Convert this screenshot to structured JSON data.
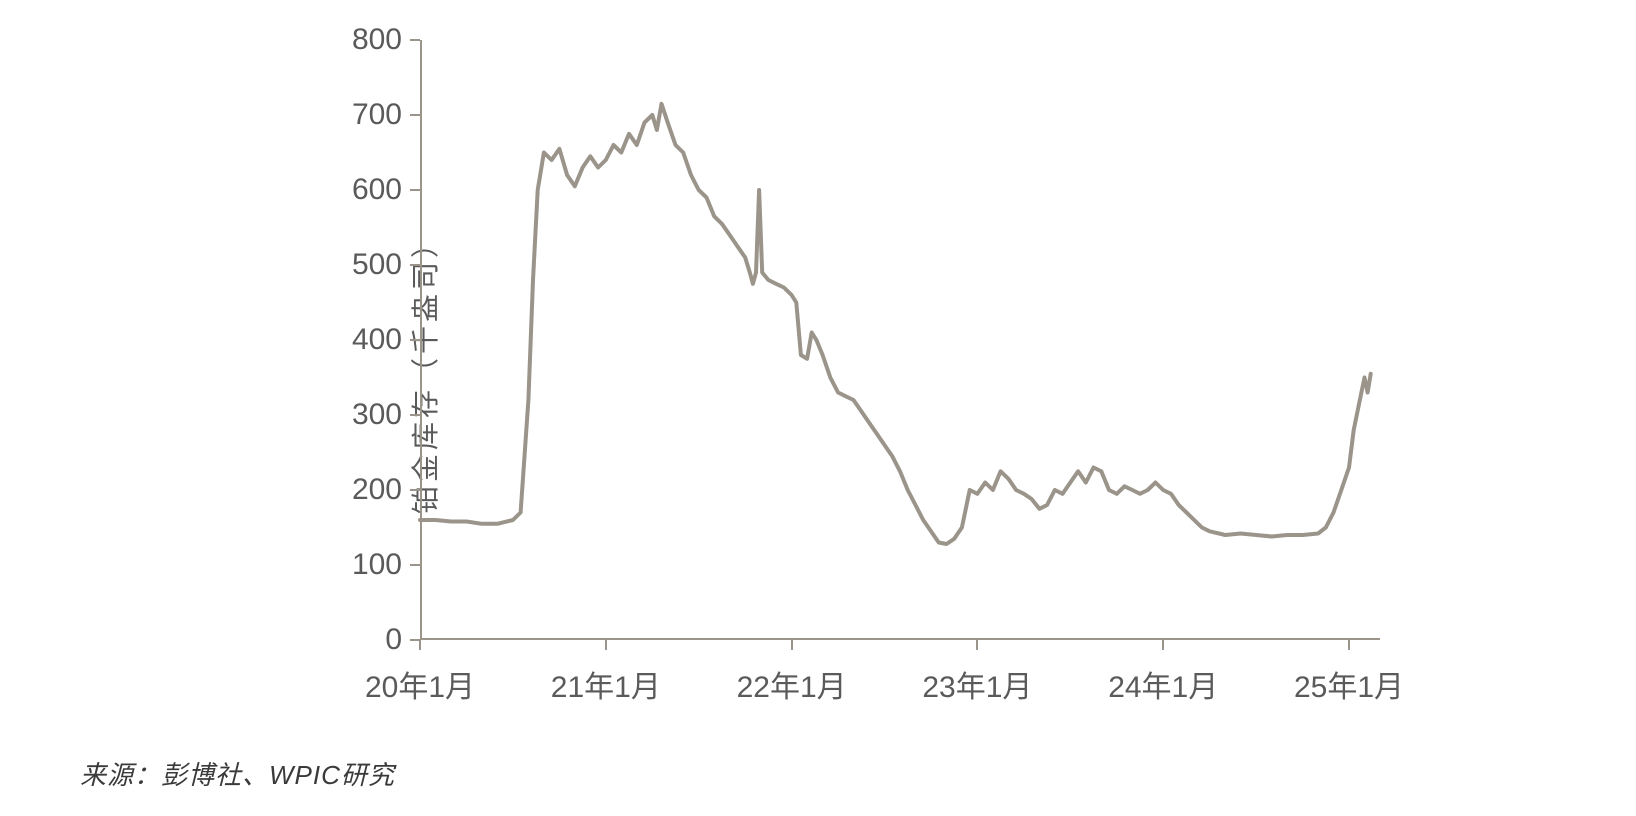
{
  "chart": {
    "type": "line",
    "y_axis_label": "铂金库存（千盎司）",
    "label_fontsize": 28,
    "tick_fontsize": 30,
    "line_color": "#9a948a",
    "line_width": 4,
    "axis_color": "#9a948a",
    "text_color": "#5a5a5a",
    "background_color": "#ffffff",
    "ylim": [
      0,
      800
    ],
    "ytick_step": 100,
    "y_ticks": [
      0,
      100,
      200,
      300,
      400,
      500,
      600,
      700,
      800
    ],
    "x_labels": [
      "20年1月",
      "21年1月",
      "22年1月",
      "23年1月",
      "24年1月",
      "25年1月"
    ],
    "x_range_months": 62,
    "series": [
      {
        "m": 0,
        "v": 160
      },
      {
        "m": 1,
        "v": 160
      },
      {
        "m": 2,
        "v": 158
      },
      {
        "m": 3,
        "v": 158
      },
      {
        "m": 4,
        "v": 155
      },
      {
        "m": 5,
        "v": 155
      },
      {
        "m": 6,
        "v": 160
      },
      {
        "m": 6.5,
        "v": 170
      },
      {
        "m": 7,
        "v": 320
      },
      {
        "m": 7.3,
        "v": 480
      },
      {
        "m": 7.6,
        "v": 600
      },
      {
        "m": 8,
        "v": 650
      },
      {
        "m": 8.5,
        "v": 640
      },
      {
        "m": 9,
        "v": 655
      },
      {
        "m": 9.5,
        "v": 620
      },
      {
        "m": 10,
        "v": 605
      },
      {
        "m": 10.5,
        "v": 630
      },
      {
        "m": 11,
        "v": 645
      },
      {
        "m": 11.5,
        "v": 630
      },
      {
        "m": 12,
        "v": 640
      },
      {
        "m": 12.5,
        "v": 660
      },
      {
        "m": 13,
        "v": 650
      },
      {
        "m": 13.5,
        "v": 675
      },
      {
        "m": 14,
        "v": 660
      },
      {
        "m": 14.5,
        "v": 690
      },
      {
        "m": 15,
        "v": 700
      },
      {
        "m": 15.3,
        "v": 680
      },
      {
        "m": 15.6,
        "v": 715
      },
      {
        "m": 16,
        "v": 690
      },
      {
        "m": 16.5,
        "v": 660
      },
      {
        "m": 17,
        "v": 650
      },
      {
        "m": 17.5,
        "v": 620
      },
      {
        "m": 18,
        "v": 600
      },
      {
        "m": 18.5,
        "v": 590
      },
      {
        "m": 19,
        "v": 565
      },
      {
        "m": 19.5,
        "v": 555
      },
      {
        "m": 20,
        "v": 540
      },
      {
        "m": 20.5,
        "v": 525
      },
      {
        "m": 21,
        "v": 510
      },
      {
        "m": 21.3,
        "v": 490
      },
      {
        "m": 21.5,
        "v": 475
      },
      {
        "m": 21.7,
        "v": 490
      },
      {
        "m": 21.9,
        "v": 600
      },
      {
        "m": 22.1,
        "v": 490
      },
      {
        "m": 22.5,
        "v": 480
      },
      {
        "m": 23,
        "v": 475
      },
      {
        "m": 23.5,
        "v": 470
      },
      {
        "m": 24,
        "v": 460
      },
      {
        "m": 24.3,
        "v": 450
      },
      {
        "m": 24.6,
        "v": 380
      },
      {
        "m": 25,
        "v": 375
      },
      {
        "m": 25.3,
        "v": 410
      },
      {
        "m": 25.6,
        "v": 400
      },
      {
        "m": 26,
        "v": 380
      },
      {
        "m": 26.5,
        "v": 350
      },
      {
        "m": 27,
        "v": 330
      },
      {
        "m": 27.5,
        "v": 325
      },
      {
        "m": 28,
        "v": 320
      },
      {
        "m": 28.5,
        "v": 305
      },
      {
        "m": 29,
        "v": 290
      },
      {
        "m": 29.5,
        "v": 275
      },
      {
        "m": 30,
        "v": 260
      },
      {
        "m": 30.5,
        "v": 245
      },
      {
        "m": 31,
        "v": 225
      },
      {
        "m": 31.5,
        "v": 200
      },
      {
        "m": 32,
        "v": 180
      },
      {
        "m": 32.5,
        "v": 160
      },
      {
        "m": 33,
        "v": 145
      },
      {
        "m": 33.5,
        "v": 130
      },
      {
        "m": 34,
        "v": 128
      },
      {
        "m": 34.5,
        "v": 135
      },
      {
        "m": 35,
        "v": 150
      },
      {
        "m": 35.5,
        "v": 200
      },
      {
        "m": 36,
        "v": 195
      },
      {
        "m": 36.5,
        "v": 210
      },
      {
        "m": 37,
        "v": 200
      },
      {
        "m": 37.5,
        "v": 225
      },
      {
        "m": 38,
        "v": 215
      },
      {
        "m": 38.5,
        "v": 200
      },
      {
        "m": 39,
        "v": 195
      },
      {
        "m": 39.5,
        "v": 188
      },
      {
        "m": 40,
        "v": 175
      },
      {
        "m": 40.5,
        "v": 180
      },
      {
        "m": 41,
        "v": 200
      },
      {
        "m": 41.5,
        "v": 195
      },
      {
        "m": 42,
        "v": 210
      },
      {
        "m": 42.5,
        "v": 225
      },
      {
        "m": 43,
        "v": 210
      },
      {
        "m": 43.5,
        "v": 230
      },
      {
        "m": 44,
        "v": 225
      },
      {
        "m": 44.5,
        "v": 200
      },
      {
        "m": 45,
        "v": 195
      },
      {
        "m": 45.5,
        "v": 205
      },
      {
        "m": 46,
        "v": 200
      },
      {
        "m": 46.5,
        "v": 195
      },
      {
        "m": 47,
        "v": 200
      },
      {
        "m": 47.5,
        "v": 210
      },
      {
        "m": 48,
        "v": 200
      },
      {
        "m": 48.5,
        "v": 195
      },
      {
        "m": 49,
        "v": 180
      },
      {
        "m": 49.5,
        "v": 170
      },
      {
        "m": 50,
        "v": 160
      },
      {
        "m": 50.5,
        "v": 150
      },
      {
        "m": 51,
        "v": 145
      },
      {
        "m": 52,
        "v": 140
      },
      {
        "m": 53,
        "v": 142
      },
      {
        "m": 54,
        "v": 140
      },
      {
        "m": 55,
        "v": 138
      },
      {
        "m": 56,
        "v": 140
      },
      {
        "m": 57,
        "v": 140
      },
      {
        "m": 58,
        "v": 142
      },
      {
        "m": 58.5,
        "v": 150
      },
      {
        "m": 59,
        "v": 170
      },
      {
        "m": 59.5,
        "v": 200
      },
      {
        "m": 60,
        "v": 230
      },
      {
        "m": 60.3,
        "v": 280
      },
      {
        "m": 60.6,
        "v": 310
      },
      {
        "m": 61,
        "v": 350
      },
      {
        "m": 61.2,
        "v": 330
      },
      {
        "m": 61.4,
        "v": 355
      }
    ]
  },
  "source_note": "来源：彭博社、WPIC研究"
}
